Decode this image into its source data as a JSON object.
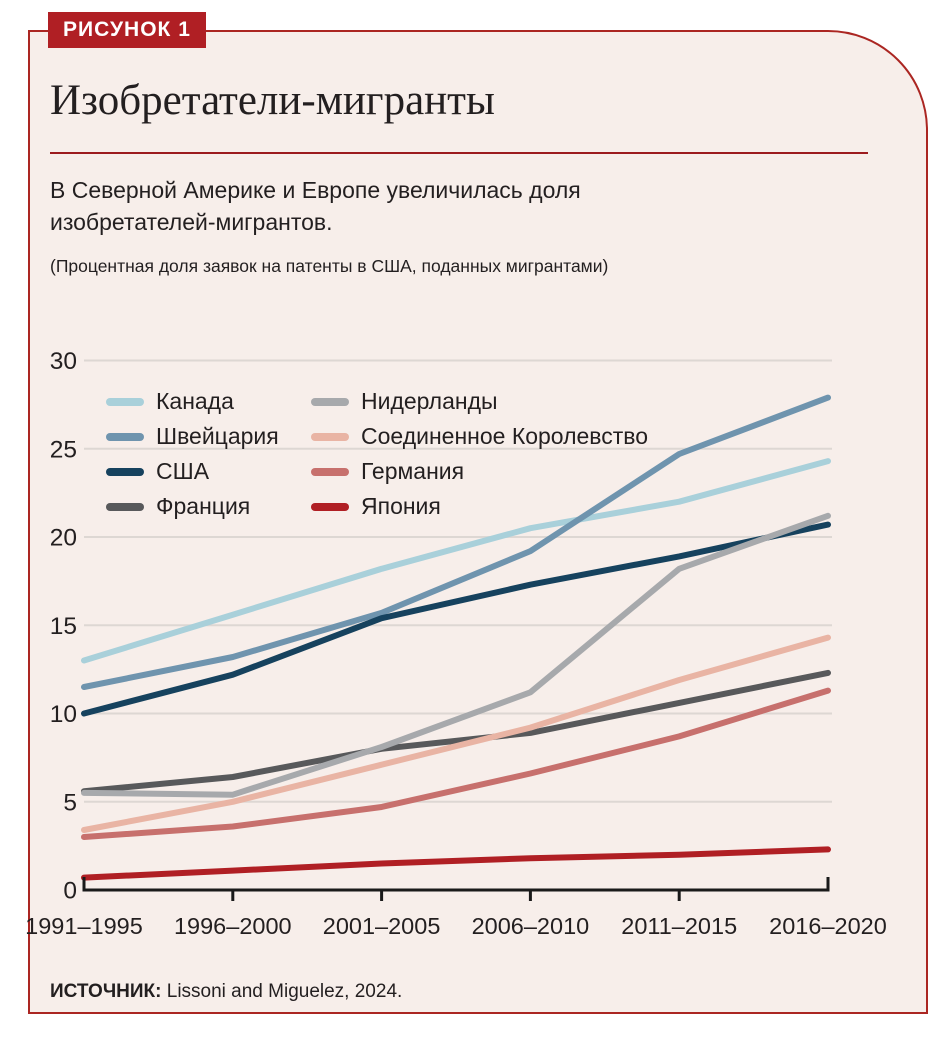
{
  "figure_label": "РИСУНОК 1",
  "title": "Изобретатели-мигранты",
  "subtitle": "В Северной Америке и Европе увеличилась доля изобретателей-мигрантов.",
  "note": "(Процентная доля заявок на патенты в США, поданных мигрантами)",
  "source": {
    "label": "ИСТОЧНИК:",
    "text": " Lissoni and Miguelez, 2024."
  },
  "colors": {
    "panel_background": "#f7eeea",
    "panel_border": "#ab2622",
    "badge_background": "#b01f24",
    "badge_text": "#ffffff",
    "text": "#231f20",
    "grid": "#ddd7d3",
    "axis": "#1a1a1a"
  },
  "chart_data": {
    "type": "line",
    "categories": [
      "1991–1995",
      "1996–2000",
      "2001–2005",
      "2006–2010",
      "2011–2015",
      "2016–2020"
    ],
    "series": [
      {
        "name": "Канада",
        "color": "#a9d0da",
        "values": [
          13.0,
          15.6,
          18.2,
          20.5,
          22.0,
          24.3
        ]
      },
      {
        "name": "Швейцария",
        "color": "#6f94ae",
        "values": [
          11.5,
          13.2,
          15.7,
          19.2,
          24.7,
          27.9
        ]
      },
      {
        "name": "США",
        "color": "#16425e",
        "values": [
          10.0,
          12.2,
          15.4,
          17.3,
          18.9,
          20.7
        ]
      },
      {
        "name": "Франция",
        "color": "#58595b",
        "values": [
          5.6,
          6.4,
          8.0,
          8.9,
          10.6,
          12.3
        ]
      },
      {
        "name": "Нидерланды",
        "color": "#a7a9ac",
        "values": [
          5.5,
          5.4,
          8.1,
          11.2,
          18.2,
          21.2
        ]
      },
      {
        "name": "Соединенное Королевство",
        "color": "#e9b4a4",
        "values": [
          3.4,
          5.0,
          7.1,
          9.2,
          11.9,
          14.3
        ]
      },
      {
        "name": "Германия",
        "color": "#c7706d",
        "values": [
          3.0,
          3.6,
          4.7,
          6.6,
          8.7,
          11.3
        ]
      },
      {
        "name": "Япония",
        "color": "#b01f24",
        "values": [
          0.7,
          1.1,
          1.5,
          1.8,
          2.0,
          2.3
        ]
      }
    ],
    "ylim": [
      0,
      30
    ],
    "yticks": [
      0,
      5,
      10,
      15,
      20,
      25,
      30
    ],
    "grid": true,
    "unit": "percent",
    "legend_position": "top-left-inside",
    "legend_columns": [
      [
        0,
        1,
        2,
        3
      ],
      [
        4,
        5,
        6,
        7
      ]
    ]
  }
}
